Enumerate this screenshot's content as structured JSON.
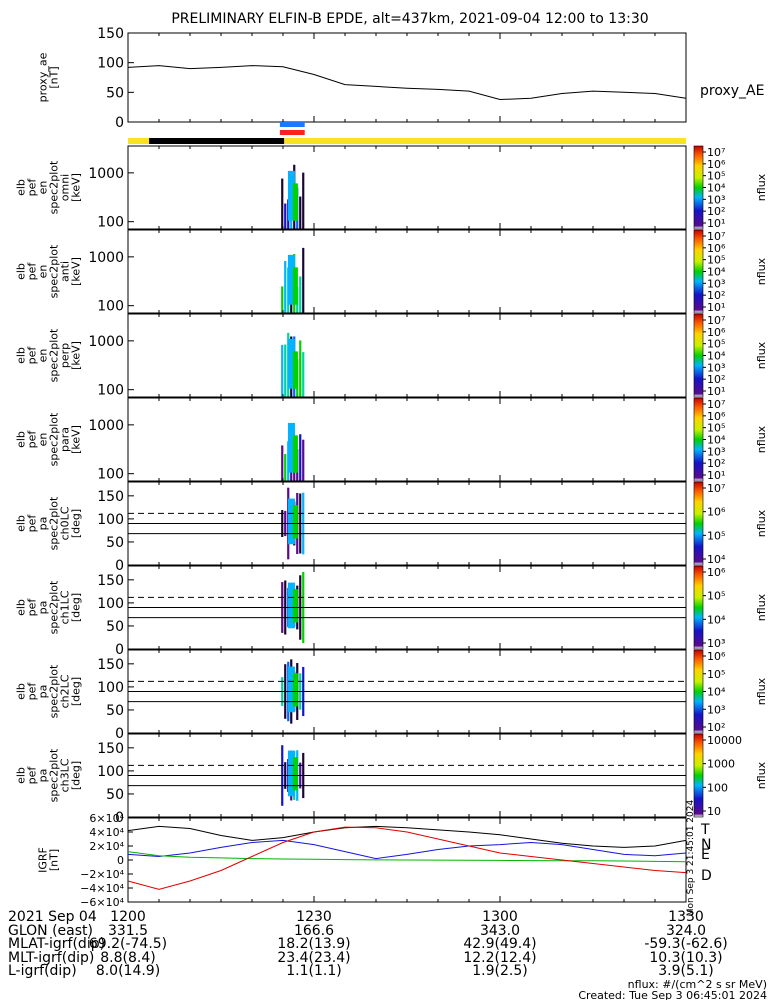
{
  "title": "PRELIMINARY ELFIN-B EPDE, alt=437km, 2021-09-04 12:00 to 13:30",
  "colors": {
    "yellow": "#ffe21f",
    "black": "#000000",
    "blue": "#1e78ff",
    "red": "#ff2020",
    "T_line": "#000000",
    "N_line": "#1414e0",
    "E_line": "#00b400",
    "D_line": "#e00000"
  },
  "chart_data": [
    {
      "id": "proxy_ae",
      "type": "line",
      "ylabel_lines": [
        "proxy_ae",
        "[nT]"
      ],
      "legend": "proxy_AE",
      "ylim": [
        0,
        150
      ],
      "yticks": [
        "0",
        "50",
        "100",
        "150"
      ],
      "x_minutes": [
        0,
        5,
        10,
        15,
        20,
        25,
        30,
        35,
        40,
        45,
        50,
        55,
        60,
        65,
        70,
        75,
        80,
        85,
        90
      ],
      "values": [
        92,
        95,
        90,
        92,
        95,
        93,
        80,
        63,
        60,
        57,
        55,
        52,
        38,
        40,
        48,
        52,
        50,
        48,
        40
      ]
    },
    {
      "id": "status_bar",
      "type": "other",
      "segments": [
        {
          "start": 0,
          "end": 3.4,
          "color": "yellow"
        },
        {
          "start": 3.4,
          "end": 25.2,
          "color": "black"
        },
        {
          "start": 25.2,
          "end": 90,
          "color": "yellow"
        }
      ],
      "blue_marker": [
        24.5,
        28.5
      ],
      "red_marker": [
        24.5,
        28.5
      ]
    },
    {
      "id": "en_omni",
      "type": "heatmap",
      "ylabel_lines": [
        "elb",
        "pef",
        "en",
        "spec2plot",
        "omni",
        "[keV]"
      ],
      "yscale": "log",
      "yticks": [
        "100",
        "1000"
      ],
      "colorbar_label": "nflux",
      "colorbar_ticks": [
        "10¹",
        "10²",
        "10³",
        "10⁴",
        "10⁵",
        "10⁶",
        "10⁷"
      ]
    },
    {
      "id": "en_anti",
      "type": "heatmap",
      "ylabel_lines": [
        "elb",
        "pef",
        "en",
        "spec2plot",
        "anti",
        "[keV]"
      ],
      "yscale": "log",
      "yticks": [
        "100",
        "1000"
      ],
      "colorbar_label": "nflux",
      "colorbar_ticks": [
        "10¹",
        "10²",
        "10³",
        "10⁴",
        "10⁵",
        "10⁶",
        "10⁷"
      ]
    },
    {
      "id": "en_perp",
      "type": "heatmap",
      "ylabel_lines": [
        "elb",
        "pef",
        "en",
        "spec2plot",
        "perp",
        "[keV]"
      ],
      "yscale": "log",
      "yticks": [
        "100",
        "1000"
      ],
      "colorbar_label": "nflux",
      "colorbar_ticks": [
        "10¹",
        "10²",
        "10³",
        "10⁴",
        "10⁵",
        "10⁶",
        "10⁷"
      ]
    },
    {
      "id": "en_para",
      "type": "heatmap",
      "ylabel_lines": [
        "elb",
        "pef",
        "en",
        "spec2plot",
        "para",
        "[keV]"
      ],
      "yscale": "log",
      "yticks": [
        "100",
        "1000"
      ],
      "colorbar_label": "nflux",
      "colorbar_ticks": [
        "10¹",
        "10²",
        "10³",
        "10⁴",
        "10⁵",
        "10⁶",
        "10⁷"
      ]
    },
    {
      "id": "pa_ch0",
      "type": "heatmap",
      "ylabel_lines": [
        "elb",
        "pef",
        "pa",
        "spec2plot",
        "ch0LC",
        "[deg]"
      ],
      "ylim": [
        0,
        180
      ],
      "yticks": [
        "0",
        "50",
        "100",
        "150"
      ],
      "colorbar_label": "nflux",
      "colorbar_ticks": [
        "10⁴",
        "10⁵",
        "10⁶",
        "10⁷"
      ]
    },
    {
      "id": "pa_ch1",
      "type": "heatmap",
      "ylabel_lines": [
        "elb",
        "pef",
        "pa",
        "spec2plot",
        "ch1LC",
        "[deg]"
      ],
      "ylim": [
        0,
        180
      ],
      "yticks": [
        "0",
        "50",
        "100",
        "150"
      ],
      "colorbar_label": "nflux",
      "colorbar_ticks": [
        "10³",
        "10⁴",
        "10⁵",
        "10⁶"
      ]
    },
    {
      "id": "pa_ch2",
      "type": "heatmap",
      "ylabel_lines": [
        "elb",
        "pef",
        "pa",
        "spec2plot",
        "ch2LC",
        "[deg]"
      ],
      "ylim": [
        0,
        180
      ],
      "yticks": [
        "0",
        "50",
        "100",
        "150"
      ],
      "colorbar_label": "nflux",
      "colorbar_ticks": [
        "10²",
        "10³",
        "10⁴",
        "10⁵",
        "10⁶"
      ]
    },
    {
      "id": "pa_ch3",
      "type": "heatmap",
      "ylabel_lines": [
        "elb",
        "pef",
        "pa",
        "spec2plot",
        "ch3LC",
        "[deg]"
      ],
      "ylim": [
        0,
        180
      ],
      "yticks": [
        "0",
        "50",
        "100",
        "150"
      ],
      "colorbar_label": "nflux",
      "colorbar_ticks": [
        "10",
        "100",
        "1000",
        "10000"
      ]
    },
    {
      "id": "igrf",
      "type": "line",
      "ylabel_lines": [
        "IGRF",
        "[nT]"
      ],
      "ylim": [
        -60000,
        60000
      ],
      "yticks": [
        "−6×10⁴",
        "−4×10⁴",
        "−2×10⁴",
        "0",
        "2×10⁴",
        "4×10⁴",
        "6×10⁴"
      ],
      "x_minutes": [
        0,
        5,
        10,
        15,
        20,
        25,
        30,
        35,
        40,
        45,
        50,
        55,
        60,
        65,
        70,
        75,
        80,
        85,
        90
      ],
      "series": [
        {
          "name": "T",
          "color": "T_line",
          "values": [
            42000,
            48000,
            45000,
            35000,
            28000,
            32000,
            40000,
            46000,
            48000,
            46000,
            43000,
            40000,
            36000,
            30000,
            24000,
            20000,
            18000,
            20000,
            28000
          ]
        },
        {
          "name": "N",
          "color": "N_line",
          "values": [
            8000,
            5000,
            10000,
            18000,
            25000,
            28000,
            22000,
            12000,
            2000,
            8000,
            15000,
            20000,
            22000,
            25000,
            22000,
            15000,
            8000,
            6000,
            10000
          ]
        },
        {
          "name": "E",
          "color": "E_line",
          "values": [
            12000,
            6000,
            4000,
            3000,
            2000,
            1500,
            1000,
            500,
            200,
            0,
            -200,
            -300,
            -500,
            -800,
            -1000,
            -1200,
            -1500,
            -2000,
            -2500
          ]
        },
        {
          "name": "D",
          "color": "D_line",
          "values": [
            -30000,
            -42000,
            -30000,
            -15000,
            5000,
            25000,
            40000,
            47000,
            46000,
            40000,
            30000,
            20000,
            10000,
            5000,
            0,
            -5000,
            -10000,
            -15000,
            -18000
          ]
        }
      ],
      "side_stamp": "Mon Sep 3 21:45:01 2024"
    }
  ],
  "footer": {
    "rows": [
      {
        "label": "2021 Sep 04",
        "values": [
          "1200",
          "1230",
          "1300",
          "1330"
        ]
      },
      {
        "label": "GLON (east)",
        "values": [
          "331.5",
          "166.6",
          "343.0",
          "324.0"
        ]
      },
      {
        "label": "MLAT-igrf(dip)",
        "values": [
          "69.2(-74.5)",
          "18.2(13.9)",
          "42.9(49.4)",
          "-59.3(-62.6)"
        ]
      },
      {
        "label": "MLT-igrf(dip)",
        "values": [
          "8.8(8.4)",
          "23.4(23.4)",
          "12.2(12.4)",
          "10.3(10.3)"
        ]
      },
      {
        "label": "L-igrf(dip)",
        "values": [
          "8.0(14.9)",
          "1.1(1.1)",
          "1.9(2.5)",
          "3.9(5.1)"
        ]
      }
    ],
    "note1": "nflux: #/(cm^2 s sr MeV)",
    "note2": "Created: Tue Sep  3 06:45:01 2024"
  }
}
